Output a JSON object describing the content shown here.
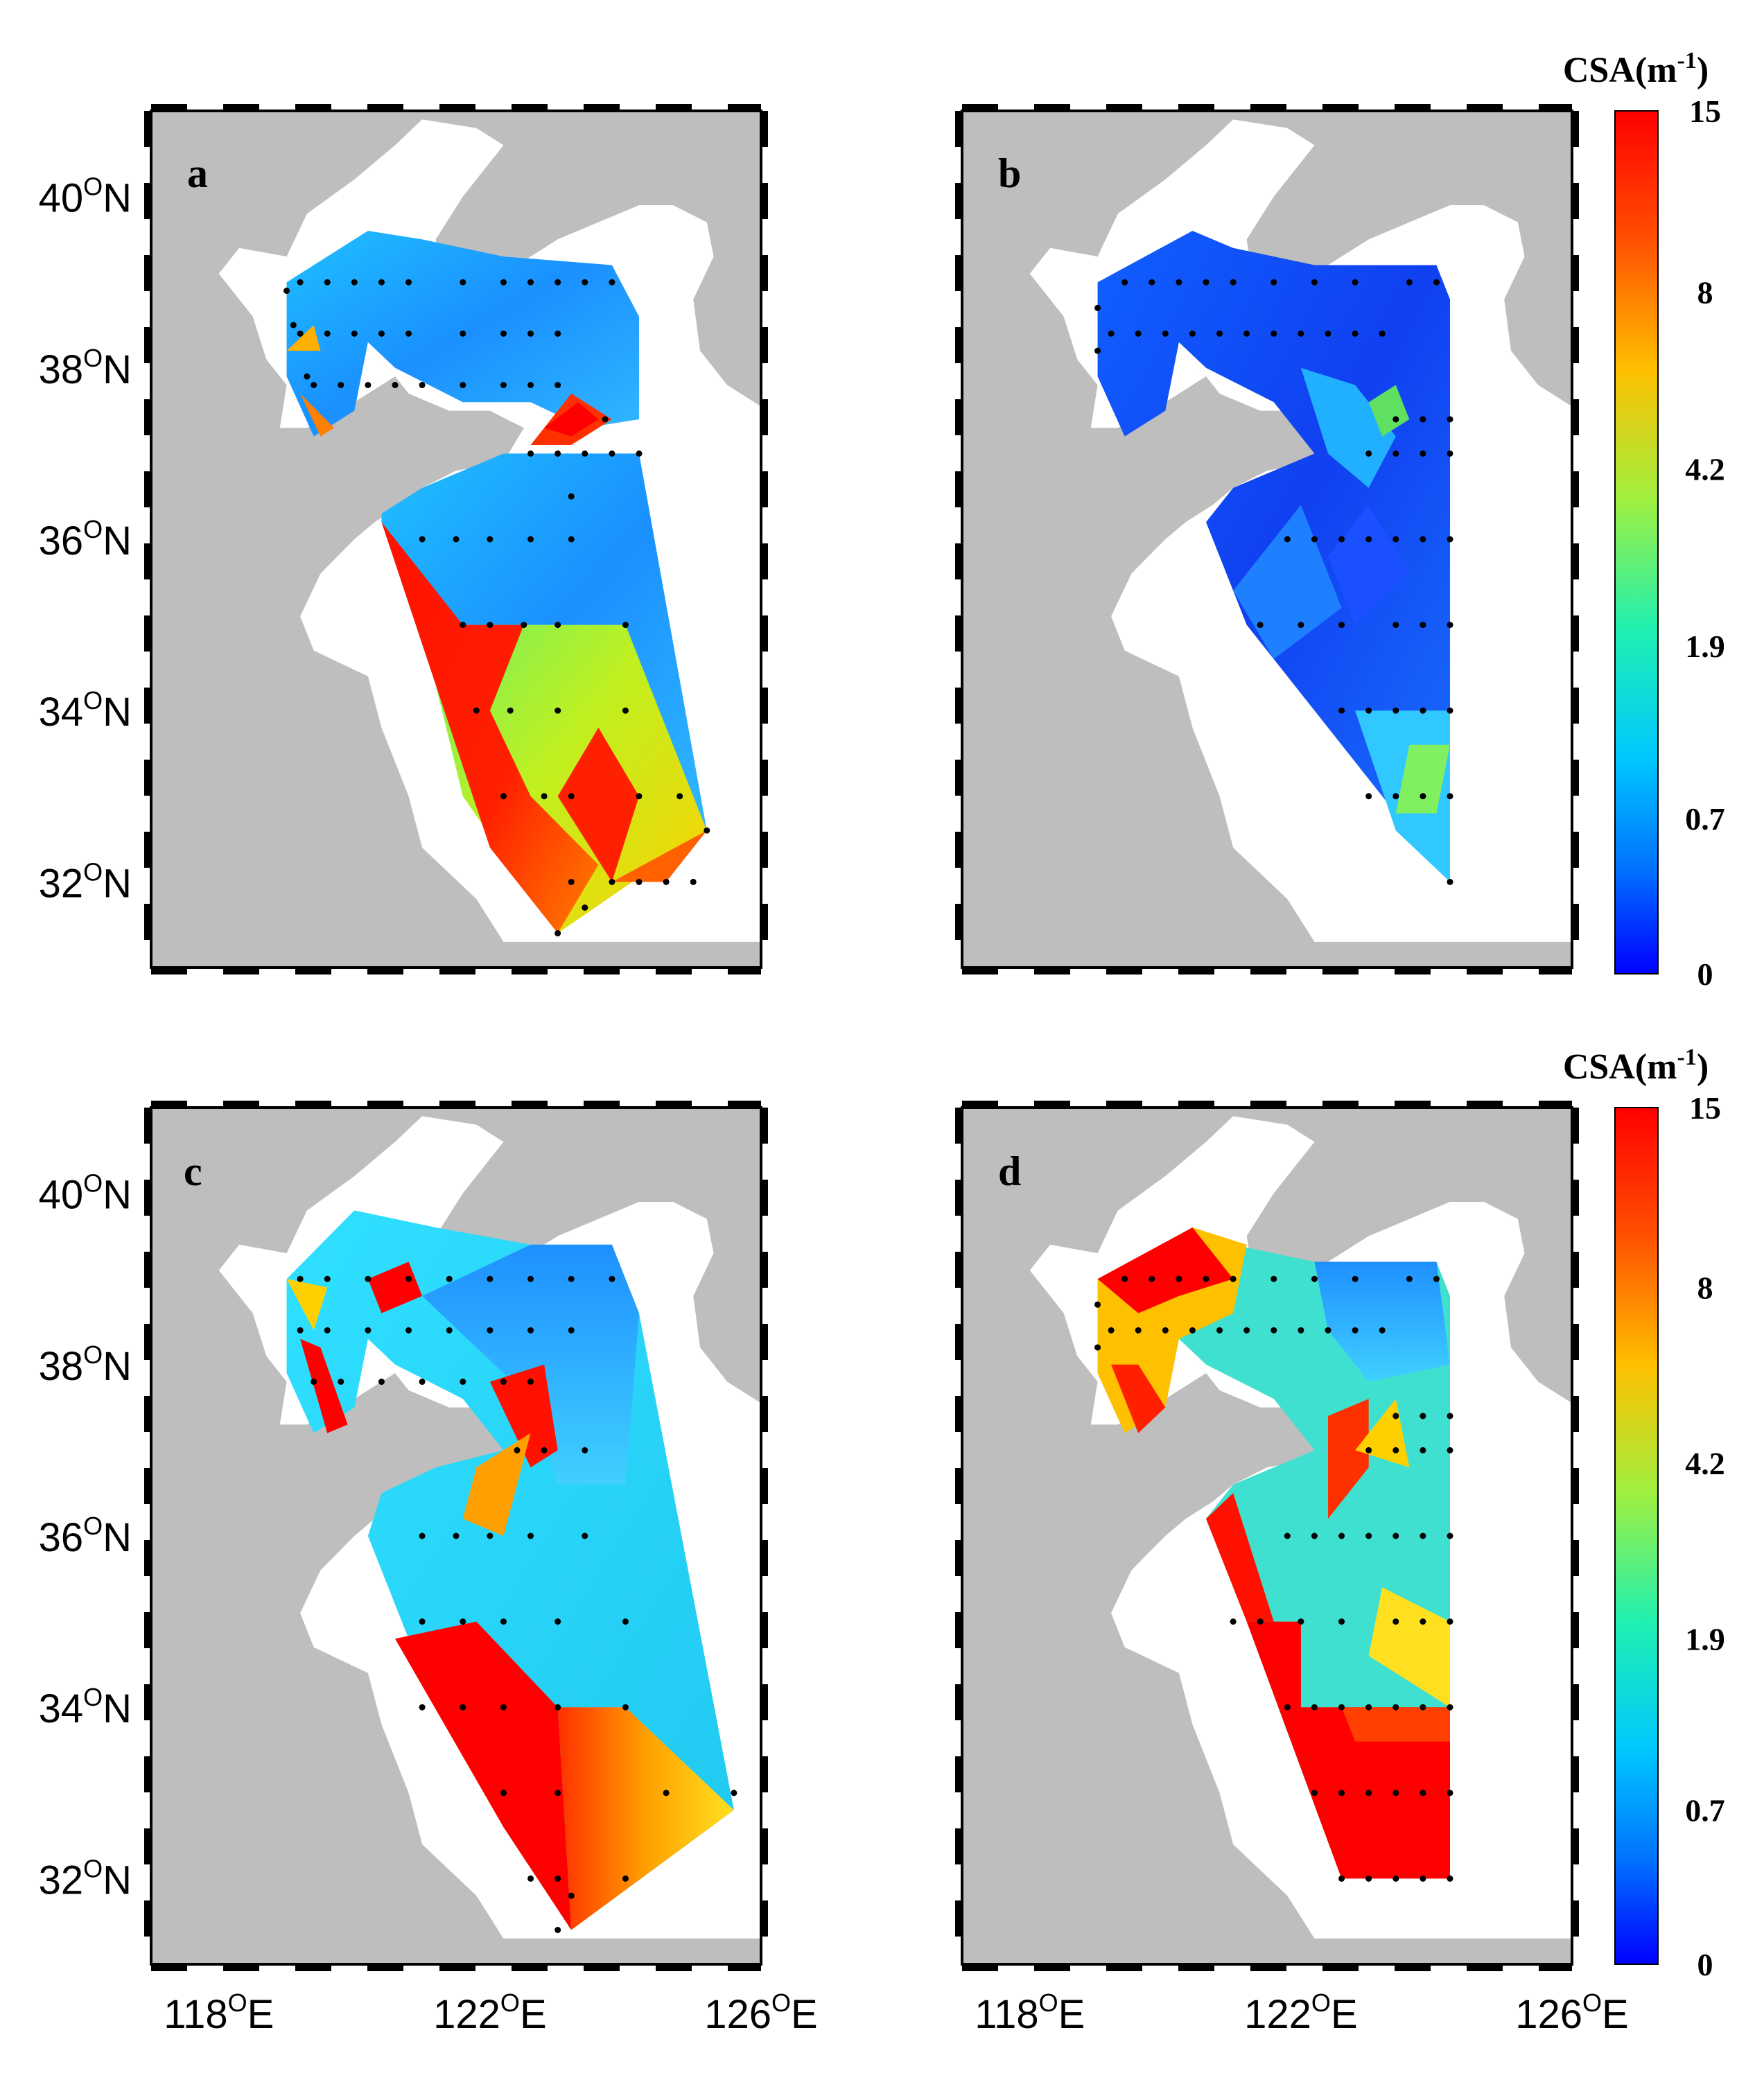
{
  "panels": [
    {
      "label": "a"
    },
    {
      "label": "b"
    },
    {
      "label": "c"
    },
    {
      "label": "d"
    }
  ],
  "latitude_ticks": [
    "40",
    "38",
    "36",
    "34",
    "32"
  ],
  "longitude_ticks": [
    "118",
    "122",
    "126"
  ],
  "lat_suffix": "N",
  "lon_suffix": "E",
  "degree_symbol": "O",
  "colorbar": {
    "title": "CSA(m",
    "title_exp": "-1",
    "title_close": ")",
    "ticks": [
      "15",
      "8",
      "4.2",
      "1.9",
      "0.7",
      "0"
    ],
    "colors": [
      "#ff0000",
      "#ff8000",
      "#ffff00",
      "#80ff80",
      "#00ffff",
      "#0080ff",
      "#0000ff"
    ]
  },
  "colors": {
    "land": "#bebebe",
    "sea": "#ffffff",
    "station": "#000000"
  }
}
